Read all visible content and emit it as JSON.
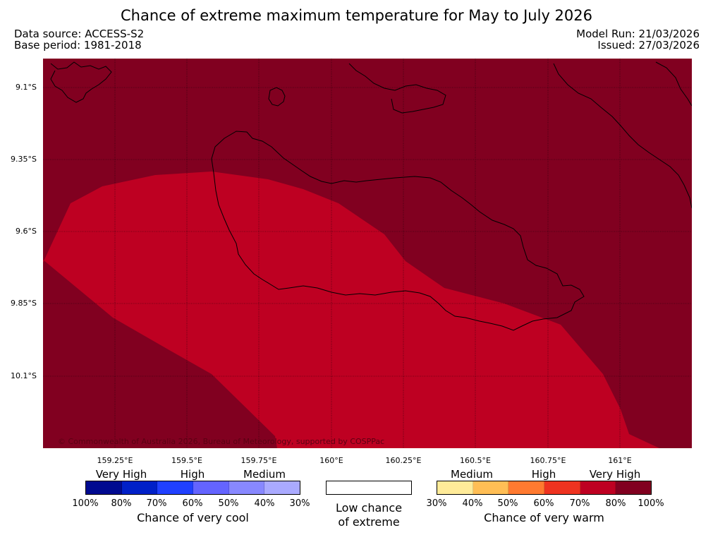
{
  "title": "Chance of extreme maximum temperature for May to July 2026",
  "data_source": "Data source: ACCESS-S2",
  "base_period": "Base period: 1981-2018",
  "model_run": "Model Run: 21/03/2026",
  "issued": "Issued: 27/03/2026",
  "copyright": "© Commonwealth of Australia 2026, Bureau of Meteorology, supported by COSPPac",
  "longitudes": [
    "159.25°E",
    "159.5°E",
    "159.75°E",
    "160°E",
    "160.25°E",
    "160.5°E",
    "160.75°E",
    "161°E"
  ],
  "latitudes": [
    "9.1°S",
    "9.35°S",
    "9.6°S",
    "9.85°S",
    "10.1°S"
  ],
  "map_colors": {
    "very_high": "#810020",
    "high": "#be0022",
    "coast": "#000000"
  },
  "cool_legend": {
    "categories": [
      "Very High",
      "High",
      "Medium"
    ],
    "colors": [
      "#000a90",
      "#0020c8",
      "#2040ff",
      "#6464ff",
      "#8888ff",
      "#aaaaff"
    ],
    "ticks": [
      "100%",
      "80%",
      "70%",
      "60%",
      "50%",
      "40%",
      "30%"
    ],
    "caption": "Chance of very cool"
  },
  "neutral_legend": {
    "line1": "Low chance",
    "line2": "of extreme",
    "color": "#ffffff"
  },
  "warm_legend": {
    "categories": [
      "Medium",
      "High",
      "Very High"
    ],
    "colors": [
      "#ffeb99",
      "#ffbe55",
      "#ff7a30",
      "#ee3320",
      "#be0022",
      "#810020"
    ],
    "ticks": [
      "30%",
      "40%",
      "50%",
      "60%",
      "70%",
      "80%",
      "100%"
    ],
    "caption": "Chance of very warm"
  }
}
